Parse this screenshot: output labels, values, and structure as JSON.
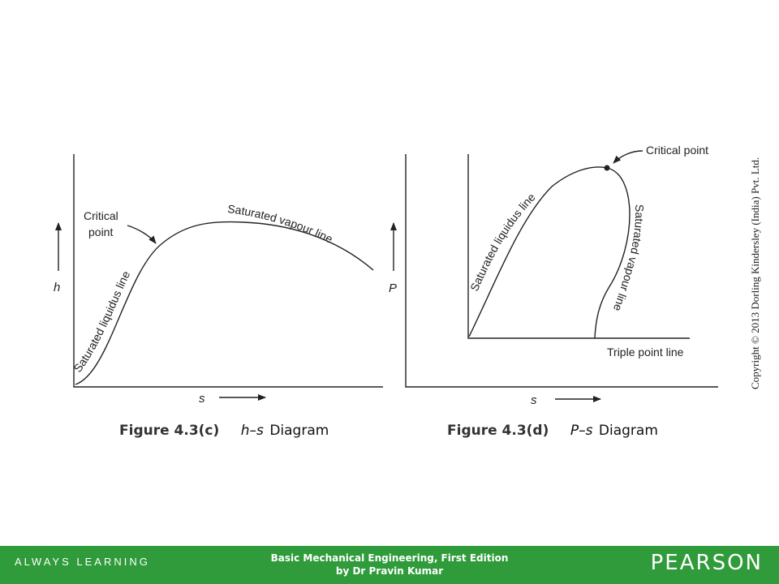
{
  "figures": {
    "left": {
      "caption_number": "Figure 4.3(c)",
      "caption_title_italic": "h–s",
      "caption_title_rest": "Diagram",
      "axis_y": "h",
      "axis_x": "s",
      "critical_point_line1": "Critical",
      "critical_point_line2": "point",
      "saturated_liquidus": "Saturated liquidus line",
      "saturated_vapour": "Saturated vapour line"
    },
    "right": {
      "caption_number": "Figure 4.3(d)",
      "caption_title_italic": "P–s",
      "caption_title_rest": "Diagram",
      "axis_y": "P",
      "axis_x": "s",
      "critical_point": "Critical point",
      "saturated_liquidus": "Saturated liquidus line",
      "saturated_vapour": "Saturated vapour line",
      "triple_point": "Triple point line"
    }
  },
  "copyright": "Copyright © 2013 Dorling Kindersley (India) Pvt. Ltd.",
  "footer": {
    "tagline": "ALWAYS LEARNING",
    "book_title": "Basic Mechanical Engineering, First Edition",
    "author": "by Dr Pravin Kumar",
    "brand": "PEARSON"
  },
  "colors": {
    "footer_bg": "#2f9b3a",
    "footer_text": "#ffffff",
    "line": "#222222"
  }
}
